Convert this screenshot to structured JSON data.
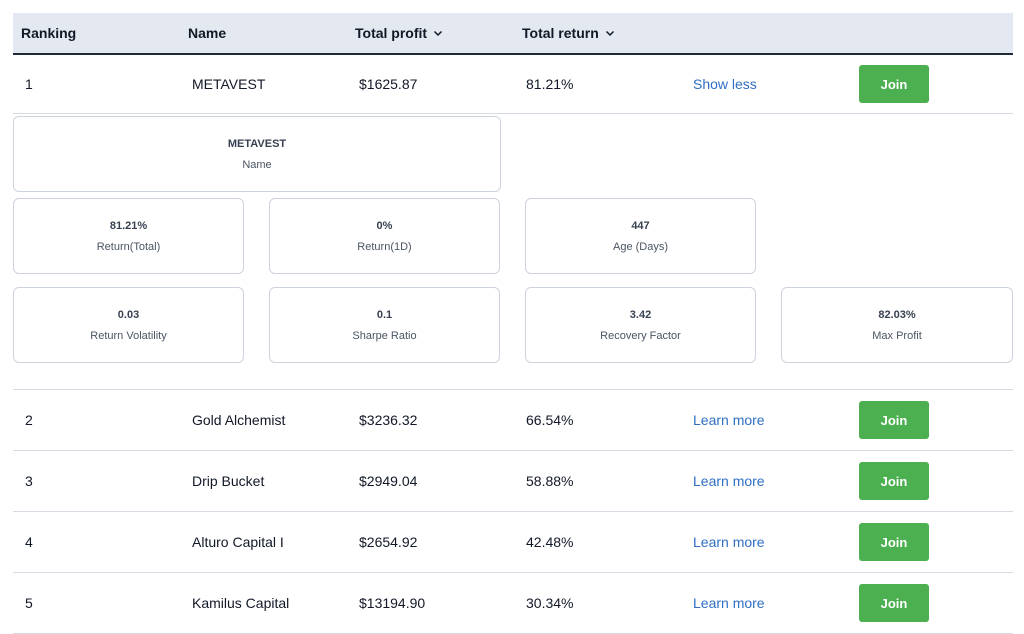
{
  "headers": {
    "ranking": "Ranking",
    "name": "Name",
    "total_profit": "Total profit",
    "total_return": "Total return"
  },
  "rows": [
    {
      "rank": "1",
      "name": "METAVEST",
      "profit": "$1625.87",
      "return": "81.21%",
      "link": "Show less",
      "join": "Join"
    },
    {
      "rank": "2",
      "name": "Gold Alchemist",
      "profit": "$3236.32",
      "return": "66.54%",
      "link": "Learn more",
      "join": "Join"
    },
    {
      "rank": "3",
      "name": "Drip Bucket",
      "profit": "$2949.04",
      "return": "58.88%",
      "link": "Learn more",
      "join": "Join"
    },
    {
      "rank": "4",
      "name": "Alturo Capital I",
      "profit": "$2654.92",
      "return": "42.48%",
      "link": "Learn more",
      "join": "Join"
    },
    {
      "rank": "5",
      "name": "Kamilus Capital",
      "profit": "$13194.90",
      "return": "30.34%",
      "link": "Learn more",
      "join": "Join"
    }
  ],
  "details": {
    "name_card": {
      "value": "METAVEST",
      "label": "Name"
    },
    "return_total": {
      "value": "81.21%",
      "label": "Return(Total)"
    },
    "return_1d": {
      "value": "0%",
      "label": "Return(1D)"
    },
    "age": {
      "value": "447",
      "label": "Age (Days)"
    },
    "volatility": {
      "value": "0.03",
      "label": "Return Volatility"
    },
    "sharpe": {
      "value": "0.1",
      "label": "Sharpe Ratio"
    },
    "recovery": {
      "value": "3.42",
      "label": "Recovery Factor"
    },
    "max_profit": {
      "value": "82.03%",
      "label": "Max Profit"
    }
  },
  "colors": {
    "join_button": "#4caf50",
    "link": "#2f6fc4",
    "header_bg": "#e4e8f0"
  },
  "icons": {
    "sort": "chevron-down-icon"
  }
}
